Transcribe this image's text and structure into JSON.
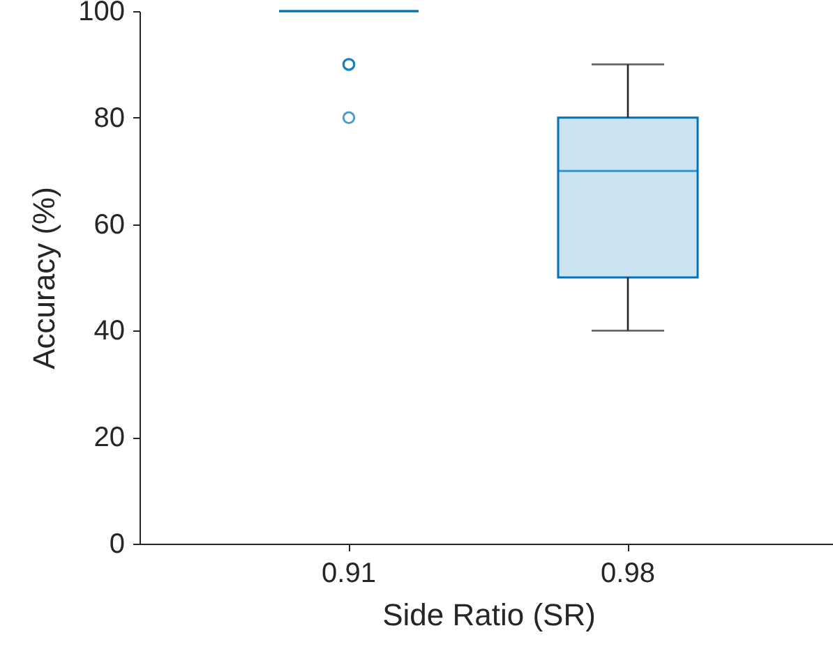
{
  "chart_data": {
    "type": "box",
    "xlabel": "Side Ratio (SR)",
    "ylabel": "Accuracy (%)",
    "categories": [
      "0.91",
      "0.98"
    ],
    "series": [
      {
        "color": "#0072bd",
        "boxes": [
          {
            "low": 100,
            "q1": 100,
            "median": 100,
            "q3": 100,
            "high": 100,
            "outliers": [
              90,
              90,
              80
            ]
          },
          {
            "low": 40,
            "q1": 50,
            "median": 70,
            "q3": 80,
            "high": 90
          }
        ]
      }
    ],
    "ylim": [
      0,
      100
    ],
    "yticks": [
      0,
      20,
      40,
      60,
      80,
      100
    ],
    "grid": false
  }
}
